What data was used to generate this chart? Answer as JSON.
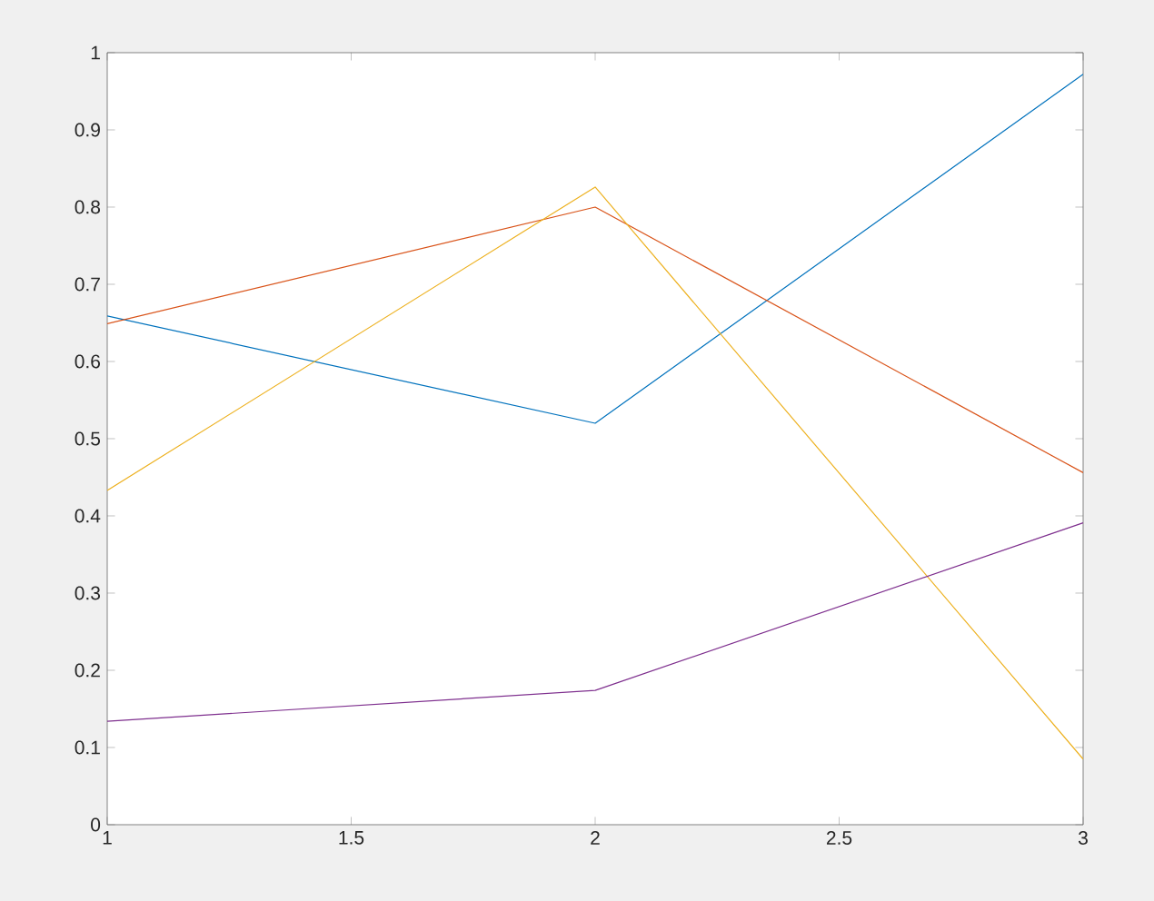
{
  "chart_data": {
    "type": "line",
    "x": [
      1,
      2,
      3
    ],
    "series": [
      {
        "color": "#0072bd",
        "values": [
          0.659,
          0.52,
          0.972
        ]
      },
      {
        "color": "#d95319",
        "values": [
          0.649,
          0.8,
          0.456
        ]
      },
      {
        "color": "#edb120",
        "values": [
          0.433,
          0.826,
          0.085
        ]
      },
      {
        "color": "#7e2f8e",
        "values": [
          0.134,
          0.174,
          0.391
        ]
      }
    ],
    "xlim": [
      1,
      3
    ],
    "ylim": [
      0,
      1
    ],
    "xticks": [
      1,
      1.5,
      2,
      2.5,
      3
    ],
    "yticks": [
      0,
      0.1,
      0.2,
      0.3,
      0.4,
      0.5,
      0.6,
      0.7,
      0.8,
      0.9,
      1
    ],
    "grid": false
  }
}
